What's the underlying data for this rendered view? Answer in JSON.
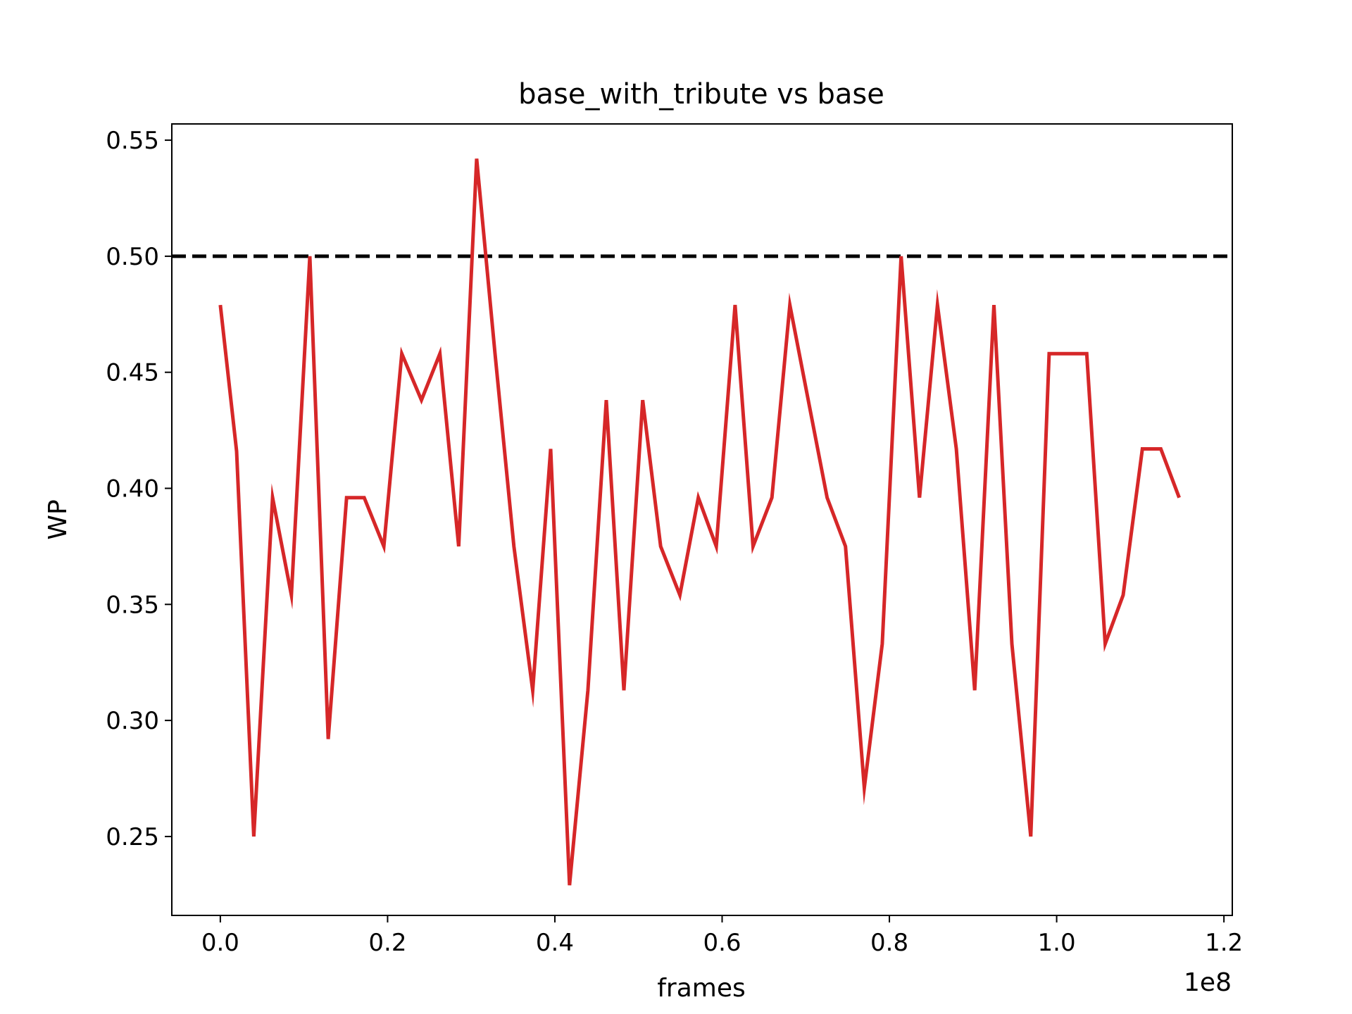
{
  "chart_data": {
    "type": "line",
    "title": "base_with_tribute vs base",
    "xlabel": "frames",
    "ylabel": "WP",
    "x_offset_label": "1e8",
    "xlim": [
      -0.058,
      1.21
    ],
    "ylim": [
      0.216,
      0.557
    ],
    "x_ticks": [
      0.0,
      0.2,
      0.4,
      0.6,
      0.8,
      1.0,
      1.2
    ],
    "x_tick_labels": [
      "0.0",
      "0.2",
      "0.4",
      "0.6",
      "0.8",
      "1.0",
      "1.2"
    ],
    "y_ticks": [
      0.25,
      0.3,
      0.35,
      0.4,
      0.45,
      0.5,
      0.55
    ],
    "y_tick_labels": [
      "0.25",
      "0.30",
      "0.35",
      "0.40",
      "0.45",
      "0.50",
      "0.55"
    ],
    "grid": false,
    "reference_line": {
      "y": 0.5,
      "style": "dashed",
      "color": "#000000"
    },
    "series": [
      {
        "color": "#d62728",
        "x": [
          0.0,
          0.0195,
          0.04,
          0.0625,
          0.085,
          0.107,
          0.129,
          0.151,
          0.172,
          0.1955,
          0.217,
          0.2405,
          0.2625,
          0.285,
          0.3065,
          0.3285,
          0.351,
          0.3735,
          0.395,
          0.4175,
          0.4395,
          0.4615,
          0.4825,
          0.505,
          0.5265,
          0.5495,
          0.5715,
          0.593,
          0.6155,
          0.637,
          0.6595,
          0.681,
          0.703,
          0.7255,
          0.7475,
          0.77,
          0.7915,
          0.814,
          0.836,
          0.8575,
          0.88,
          0.902,
          0.925,
          0.9465,
          0.969,
          0.991,
          1.0135,
          1.036,
          1.058,
          1.0795,
          1.1025,
          1.1245,
          1.1465
        ],
        "y": [
          0.479,
          0.416,
          0.25,
          0.396,
          0.354,
          0.5,
          0.292,
          0.396,
          0.396,
          0.375,
          0.458,
          0.438,
          0.458,
          0.375,
          0.542,
          0.458,
          0.375,
          0.313,
          0.417,
          0.229,
          0.313,
          0.438,
          0.313,
          0.438,
          0.375,
          0.354,
          0.396,
          0.375,
          0.479,
          0.375,
          0.396,
          0.479,
          0.438,
          0.396,
          0.375,
          0.271,
          0.333,
          0.5,
          0.396,
          0.479,
          0.417,
          0.313,
          0.479,
          0.333,
          0.25,
          0.458,
          0.458,
          0.458,
          0.333,
          0.354,
          0.417,
          0.417,
          0.396
        ]
      }
    ]
  }
}
